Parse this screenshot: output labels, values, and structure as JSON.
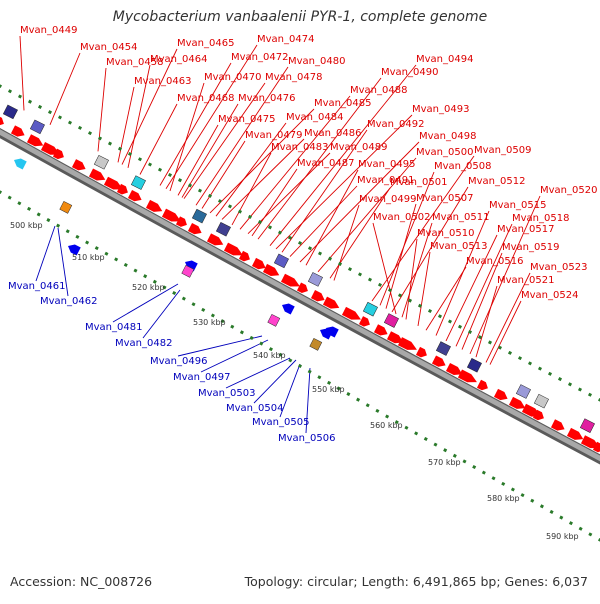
{
  "title": "Mycobacterium vanbaalenii PYR-1, complete genome",
  "footer": {
    "accession": "Accession: NC_008726",
    "topology": "Topology: circular; Length: 6,491,865 bp; Genes: 6,037"
  },
  "colors": {
    "upper_label": "#dd0000",
    "lower_label": "#0000bb",
    "forward_gene": "#ff0000",
    "reverse_gene": "#0000ee",
    "tick": "#2a7a2a",
    "backbone": "#888888"
  },
  "kbp_labels": [
    "500 kbp",
    "510 kbp",
    "520 kbp",
    "530 kbp",
    "540 kbp",
    "550 kbp",
    "560 kbp",
    "570 kbp",
    "580 kbp",
    "590 kbp"
  ],
  "upper_labels": [
    "Mvan_0449",
    "Mvan_0454",
    "Mvan_0458",
    "Mvan_0463",
    "Mvan_0465",
    "Mvan_0464",
    "Mvan_0468",
    "Mvan_0474",
    "Mvan_0472",
    "Mvan_0470",
    "Mvan_0478",
    "Mvan_0476",
    "Mvan_0475",
    "Mvan_0480",
    "Mvan_0479",
    "Mvan_0485",
    "Mvan_0484",
    "Mvan_0486",
    "Mvan_0483",
    "Mvan_0488",
    "Mvan_0489",
    "Mvan_0487",
    "Mvan_0490",
    "Mvan_0494",
    "Mvan_0493",
    "Mvan_0492",
    "Mvan_0491",
    "Mvan_0498",
    "Mvan_0495",
    "Mvan_0500",
    "Mvan_0509",
    "Mvan_0501",
    "Mvan_0499",
    "Mvan_0508",
    "Mvan_0507",
    "Mvan_0512",
    "Mvan_0502",
    "Mvan_0511",
    "Mvan_0510",
    "Mvan_0513",
    "Mvan_0516",
    "Mvan_0515",
    "Mvan_0520",
    "Mvan_0518",
    "Mvan_0517",
    "Mvan_0519",
    "Mvan_0521",
    "Mvan_0523",
    "Mvan_0524"
  ],
  "lower_labels": [
    "Mvan_0461",
    "Mvan_0462",
    "Mvan_0481",
    "Mvan_0482",
    "Mvan_0496",
    "Mvan_0497",
    "Mvan_0503",
    "Mvan_0504",
    "Mvan_0505",
    "Mvan_0506"
  ]
}
